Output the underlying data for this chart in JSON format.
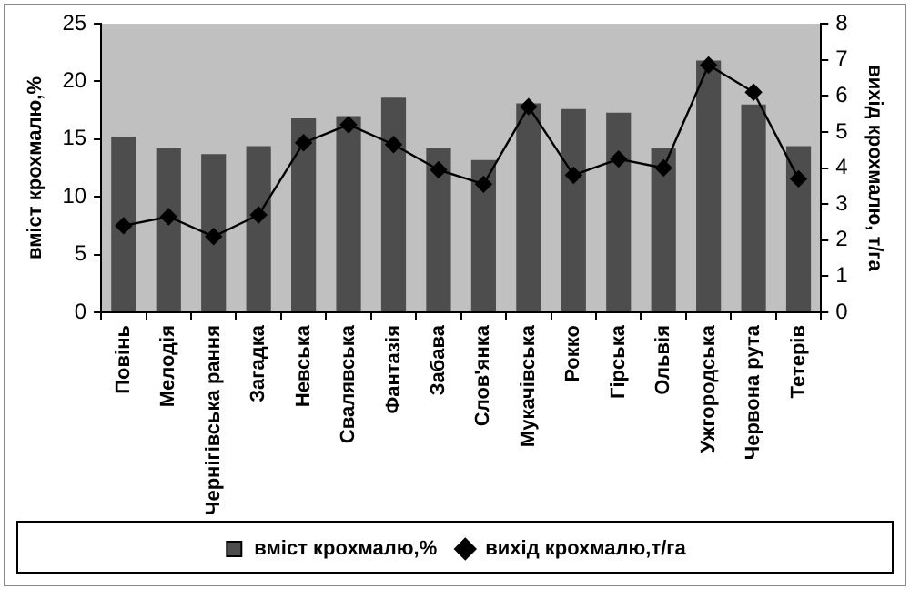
{
  "chart_data": {
    "type": "bar",
    "xlabel": null,
    "ylabel": "вміст крохмалю,%",
    "y2label": "вихід крохмалю, т/га",
    "categories": [
      "Повінь",
      "Мелодія",
      "Чернігівська рання",
      "Загадка",
      "Невська",
      "Свалявська",
      "Фантазія",
      "Забава",
      "Слов'янка",
      "Мукачівська",
      "Рокко",
      "Гірська",
      "Ольвія",
      "Ужгородська",
      "Червона рута",
      "Тетерів"
    ],
    "series": [
      {
        "name": "вміст крохмалю,%",
        "color": "#4d4d4d",
        "values": [
          15.2,
          14.2,
          13.7,
          14.4,
          16.8,
          17.0,
          18.6,
          14.2,
          13.2,
          18.1,
          17.6,
          17.3,
          14.2,
          21.8,
          18.0,
          14.4
        ]
      },
      {
        "name": "вихід крохмалю,т/га",
        "type": "line",
        "axis": "y2",
        "color": "#000000",
        "values": [
          2.4,
          2.65,
          2.1,
          2.7,
          4.7,
          5.2,
          4.65,
          3.95,
          3.55,
          5.7,
          3.8,
          4.25,
          4.0,
          6.85,
          6.1,
          3.7
        ]
      }
    ],
    "ylim": [
      0,
      25
    ],
    "yticks": [
      0,
      5,
      10,
      15,
      20,
      25
    ],
    "y2lim": [
      0,
      8
    ],
    "y2ticks": [
      0,
      1,
      2,
      3,
      4,
      5,
      6,
      7,
      8
    ],
    "grid": false,
    "legend": "bottom",
    "marker": "diamond",
    "line_style": "solid"
  }
}
